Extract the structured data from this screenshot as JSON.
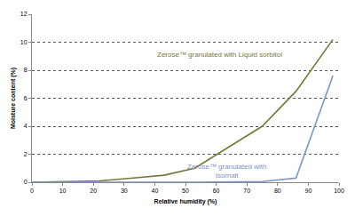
{
  "chart_data": {
    "type": "line",
    "x_label": "Relative humidity (%)",
    "y_label": "Moisture content (%)",
    "series": [
      {
        "name": "Zerose™ granulated with Liquid sorbitol",
        "color": "#77773a",
        "x": [
          0,
          11,
          22,
          33,
          43,
          53,
          75,
          86,
          98
        ],
        "values": [
          0,
          0.03,
          0.1,
          0.3,
          0.5,
          1.0,
          4.0,
          6.5,
          10.2
        ]
      },
      {
        "name": "Zerose™ granulated with Isomalt",
        "color": "#7a96c2",
        "x": [
          0,
          11,
          22,
          33,
          43,
          53,
          75,
          86,
          98
        ],
        "values": [
          0,
          0,
          0,
          0,
          0,
          0,
          0.05,
          0.3,
          7.6
        ]
      }
    ],
    "xlim": [
      0,
      100
    ],
    "xticks": [
      0,
      10,
      20,
      30,
      40,
      50,
      60,
      70,
      80,
      90,
      100
    ],
    "ylim": [
      0,
      12
    ],
    "yticks": [
      0,
      2,
      4,
      6,
      8,
      10,
      12
    ],
    "grid": true
  }
}
